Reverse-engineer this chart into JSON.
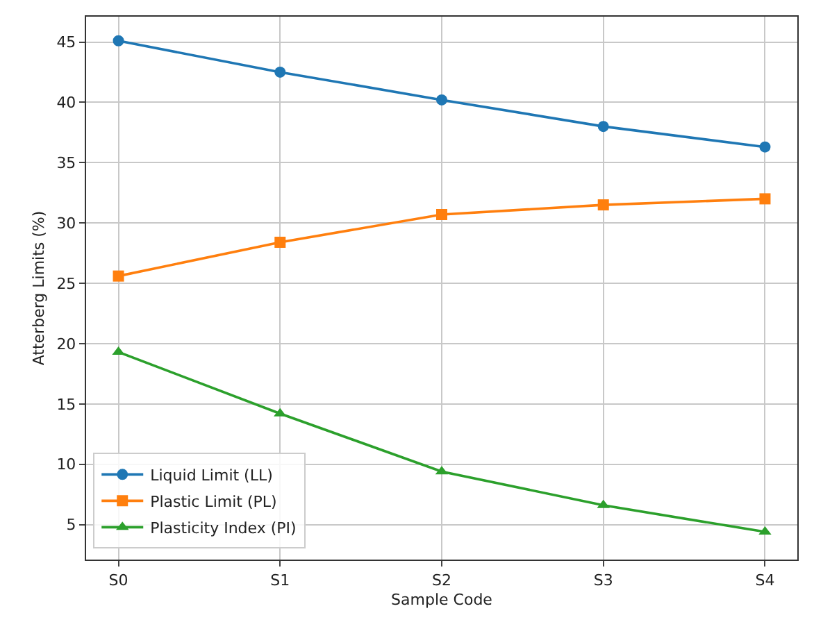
{
  "chart_data": {
    "type": "line",
    "xlabel": "Sample Code",
    "ylabel": "Atterberg Limits (%)",
    "categories": [
      "S0",
      "S1",
      "S2",
      "S3",
      "S4"
    ],
    "series": [
      {
        "name": "Liquid Limit (LL)",
        "color": "#1f77b4",
        "marker": "circle",
        "values": [
          45.1,
          42.5,
          40.2,
          38.0,
          36.3
        ]
      },
      {
        "name": "Plastic Limit (PL)",
        "color": "#ff7f0e",
        "marker": "square",
        "values": [
          25.6,
          28.4,
          30.7,
          31.5,
          32.0
        ]
      },
      {
        "name": "Plasticity Index (PI)",
        "color": "#2ca02c",
        "marker": "triangle",
        "values": [
          19.3,
          14.2,
          9.4,
          6.6,
          4.4
        ]
      }
    ],
    "ylim": [
      2.1,
      47.1
    ],
    "yticks": [
      5,
      10,
      15,
      20,
      25,
      30,
      35,
      40,
      45
    ],
    "grid": true,
    "legend": "bottom left",
    "line_style": "solid"
  }
}
